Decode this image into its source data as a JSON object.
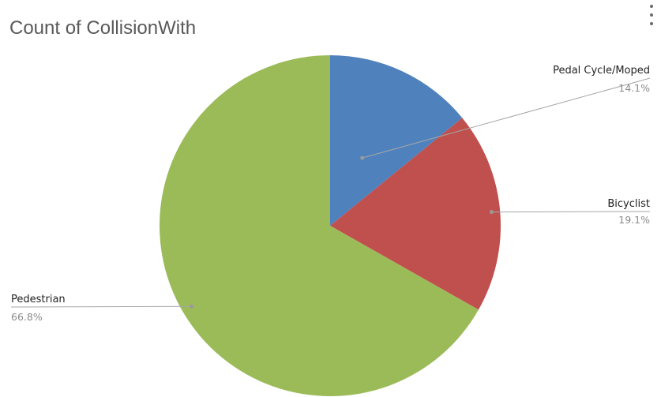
{
  "chart_data": {
    "type": "pie",
    "title": "Count of CollisionWith",
    "categories": [
      "Pedal Cycle/Moped",
      "Bicyclist",
      "Pedestrian"
    ],
    "values": [
      14.1,
      19.1,
      66.8
    ],
    "value_labels": [
      "14.1%",
      "19.1%",
      "66.8%"
    ],
    "colors": [
      "#4f81bd",
      "#c0504d",
      "#9bbb59"
    ],
    "start_angle": "12 o'clock",
    "direction": "clockwise",
    "legend": "none (data labels with leader lines)"
  },
  "icons": {
    "more_menu": "more-vertical-icon"
  }
}
